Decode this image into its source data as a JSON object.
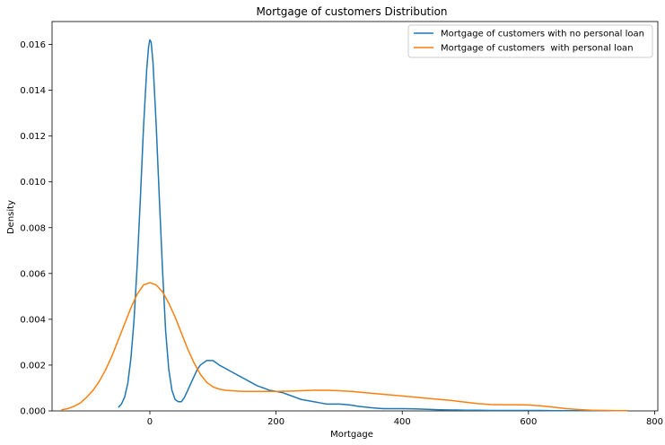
{
  "chart_data": {
    "type": "line",
    "title": "Mortgage of customers  Distribution",
    "xlabel": "Mortgage",
    "ylabel": "Density",
    "xlim": [
      -155,
      805
    ],
    "ylim": [
      0,
      0.017
    ],
    "xticks": [
      0,
      200,
      400,
      600,
      800
    ],
    "yticks": [
      0.0,
      0.002,
      0.004,
      0.006,
      0.008,
      0.01,
      0.012,
      0.014,
      0.016
    ],
    "xtick_labels": [
      "0",
      "200",
      "400",
      "600",
      "800"
    ],
    "ytick_labels": [
      "0.000",
      "0.002",
      "0.004",
      "0.006",
      "0.008",
      "0.010",
      "0.012",
      "0.014",
      "0.016"
    ],
    "grid": false,
    "legend_position": "top-right",
    "series": [
      {
        "name": "Mortgage of customers with no personal loan",
        "color": "#1f77b4",
        "x": [
          -50,
          -45,
          -40,
          -35,
          -30,
          -25,
          -20,
          -15,
          -10,
          -5,
          -2,
          0,
          2,
          5,
          10,
          15,
          20,
          25,
          30,
          35,
          40,
          45,
          50,
          55,
          60,
          65,
          70,
          75,
          80,
          90,
          100,
          105,
          110,
          120,
          130,
          140,
          150,
          160,
          170,
          180,
          190,
          200,
          210,
          220,
          230,
          240,
          250,
          260,
          270,
          280,
          290,
          300,
          310,
          320,
          330,
          340,
          350,
          360,
          370,
          380,
          390,
          400,
          420,
          440,
          460,
          480,
          500,
          520,
          540,
          560,
          580,
          600,
          620,
          640,
          660,
          680,
          700,
          720,
          740,
          757
        ],
        "y": [
          0.00015,
          0.0003,
          0.0006,
          0.0012,
          0.0023,
          0.004,
          0.0064,
          0.0093,
          0.0124,
          0.0149,
          0.0159,
          0.0162,
          0.0161,
          0.0152,
          0.0125,
          0.0093,
          0.0062,
          0.0035,
          0.0018,
          0.0009,
          0.0005,
          0.0004,
          0.0004,
          0.0006,
          0.0009,
          0.0012,
          0.0015,
          0.0018,
          0.002,
          0.0022,
          0.0022,
          0.0021,
          0.002,
          0.00185,
          0.0017,
          0.00155,
          0.0014,
          0.00125,
          0.0011,
          0.001,
          0.0009,
          0.00085,
          0.0008,
          0.0007,
          0.0006,
          0.0005,
          0.00045,
          0.0004,
          0.00035,
          0.0003,
          0.0003,
          0.0003,
          0.00028,
          0.00025,
          0.0002,
          0.00017,
          0.00014,
          0.00012,
          0.0001,
          0.0001,
          0.0001,
          0.0001,
          9e-05,
          7e-05,
          5e-05,
          4e-05,
          3e-05,
          3e-05,
          2e-05,
          2e-05,
          2e-05,
          2e-05,
          2e-05,
          1e-05,
          1e-05,
          1e-05,
          1e-05,
          1e-05,
          1e-05,
          1e-05
        ]
      },
      {
        "name": "Mortgage of customers  with personal loan",
        "color": "#ff7f0e",
        "x": [
          -140,
          -130,
          -120,
          -110,
          -100,
          -90,
          -80,
          -70,
          -60,
          -50,
          -40,
          -30,
          -20,
          -10,
          0,
          10,
          20,
          30,
          40,
          50,
          60,
          70,
          80,
          90,
          100,
          110,
          120,
          130,
          140,
          150,
          160,
          180,
          200,
          220,
          240,
          260,
          280,
          300,
          320,
          340,
          360,
          380,
          400,
          420,
          440,
          460,
          480,
          500,
          520,
          540,
          560,
          580,
          600,
          620,
          640,
          660,
          680,
          700,
          720,
          740,
          757
        ],
        "y": [
          5e-05,
          0.0001,
          0.0002,
          0.00035,
          0.0006,
          0.0009,
          0.0013,
          0.0018,
          0.0024,
          0.0031,
          0.0038,
          0.0045,
          0.0051,
          0.0055,
          0.0056,
          0.0055,
          0.0052,
          0.0047,
          0.0041,
          0.0034,
          0.0027,
          0.0021,
          0.0016,
          0.00125,
          0.00105,
          0.00095,
          0.0009,
          0.00088,
          0.00086,
          0.00085,
          0.00085,
          0.00085,
          0.00085,
          0.00086,
          0.00088,
          0.0009,
          0.0009,
          0.00088,
          0.00085,
          0.0008,
          0.00075,
          0.0007,
          0.00065,
          0.0006,
          0.00055,
          0.0005,
          0.00045,
          0.00038,
          0.00032,
          0.00028,
          0.00027,
          0.00027,
          0.00026,
          0.00022,
          0.00016,
          0.0001,
          6e-05,
          3e-05,
          2e-05,
          1e-05,
          1e-05
        ]
      }
    ]
  }
}
